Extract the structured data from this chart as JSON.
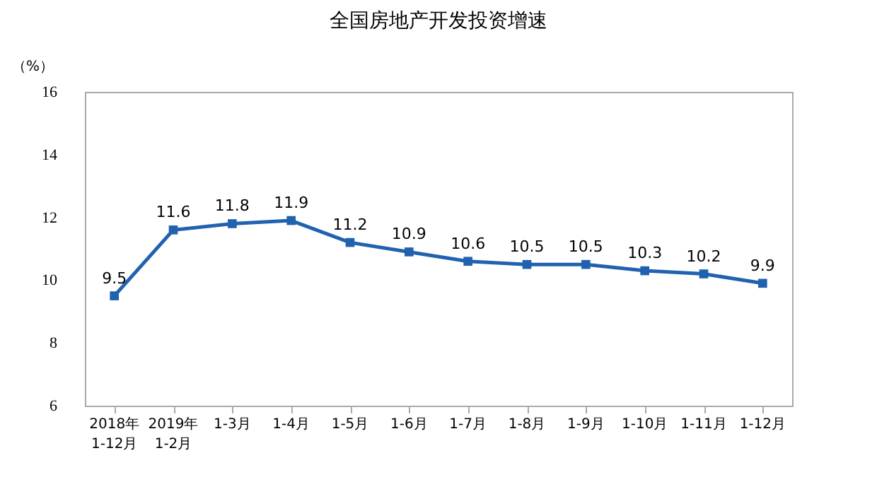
{
  "chart_data": {
    "type": "line",
    "title": "全国房地产开发投资增速",
    "ylabel": "（%）",
    "categories": [
      "2018年\n1-12月",
      "2019年\n1-2月",
      "1-3月",
      "1-4月",
      "1-5月",
      "1-6月",
      "1-7月",
      "1-8月",
      "1-9月",
      "1-10月",
      "1-11月",
      "1-12月"
    ],
    "series": [
      {
        "color": "#2162b0",
        "values": [
          9.5,
          11.6,
          11.8,
          11.9,
          11.2,
          10.9,
          10.6,
          10.5,
          10.5,
          10.3,
          10.2,
          9.9
        ]
      }
    ],
    "ylim": [
      6,
      16
    ],
    "yticks": [
      6,
      8,
      10,
      12,
      14,
      16
    ],
    "grid": false,
    "marker": "square",
    "line_style": "solid",
    "data_labels": true
  }
}
